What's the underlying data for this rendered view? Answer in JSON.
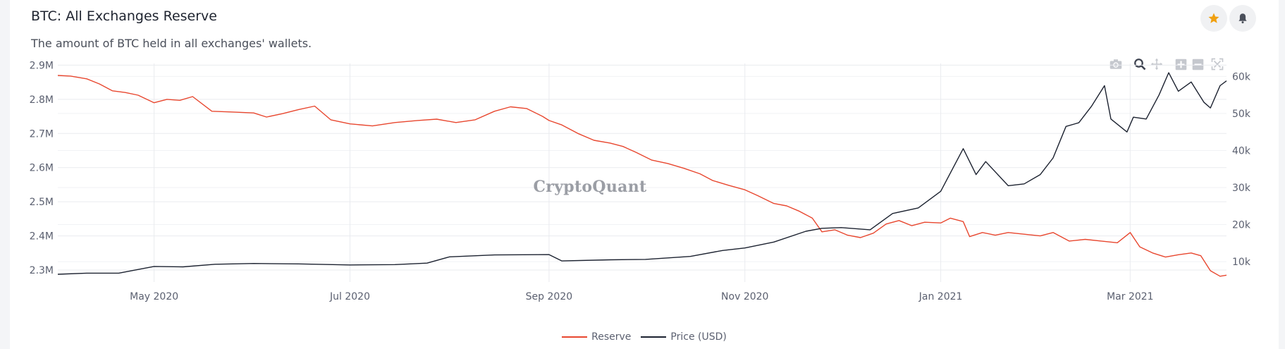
{
  "header": {
    "title": "BTC: All Exchanges Reserve",
    "subtitle": "The amount of BTC held in all exchanges' wallets."
  },
  "watermark": "CryptoQuant",
  "icons": {
    "star": "star-icon",
    "bell": "bell-icon",
    "modebar": [
      "camera-icon",
      "zoom-icon",
      "pan-icon",
      "zoom-in-icon",
      "zoom-out-icon",
      "autoscale-icon"
    ]
  },
  "colors": {
    "reserve": "#e8472f",
    "price": "#1c2230",
    "star": "#f0a010",
    "grid": "#e9ebef",
    "tick": "#5b6070"
  },
  "chart_data": {
    "type": "line",
    "xlim": [
      "2020-04-01",
      "2021-03-31"
    ],
    "x_ticks": [
      {
        "date": "2020-05-01",
        "label": "May 2020"
      },
      {
        "date": "2020-07-01",
        "label": "Jul 2020"
      },
      {
        "date": "2020-09-01",
        "label": "Sep 2020"
      },
      {
        "date": "2020-11-01",
        "label": "Nov 2020"
      },
      {
        "date": "2021-01-01",
        "label": "Jan 2021"
      },
      {
        "date": "2021-03-01",
        "label": "Mar 2021"
      }
    ],
    "y_left": {
      "range": [
        2265000,
        2905000
      ],
      "ticks": [
        2300000,
        2400000,
        2500000,
        2600000,
        2700000,
        2800000,
        2900000
      ],
      "tick_labels": [
        "2.3M",
        "2.4M",
        "2.5M",
        "2.6M",
        "2.7M",
        "2.8M",
        "2.9M"
      ]
    },
    "y_right": {
      "range": [
        4500,
        63500
      ],
      "ticks": [
        10000,
        20000,
        30000,
        40000,
        50000,
        60000
      ],
      "tick_labels": [
        "10k",
        "20k",
        "30k",
        "40k",
        "50k",
        "60k"
      ]
    },
    "grid": true,
    "legend": "bottom-center",
    "series": [
      {
        "name": "Reserve",
        "axis": "left",
        "points": [
          [
            "2020-04-01",
            2870000
          ],
          [
            "2020-04-05",
            2868000
          ],
          [
            "2020-04-10",
            2860000
          ],
          [
            "2020-04-14",
            2845000
          ],
          [
            "2020-04-18",
            2825000
          ],
          [
            "2020-04-22",
            2820000
          ],
          [
            "2020-04-26",
            2812000
          ],
          [
            "2020-05-01",
            2790000
          ],
          [
            "2020-05-05",
            2800000
          ],
          [
            "2020-05-09",
            2797000
          ],
          [
            "2020-05-13",
            2808000
          ],
          [
            "2020-05-19",
            2765000
          ],
          [
            "2020-05-25",
            2763000
          ],
          [
            "2020-06-01",
            2760000
          ],
          [
            "2020-06-05",
            2748000
          ],
          [
            "2020-06-10",
            2758000
          ],
          [
            "2020-06-15",
            2770000
          ],
          [
            "2020-06-20",
            2780000
          ],
          [
            "2020-06-25",
            2740000
          ],
          [
            "2020-07-01",
            2728000
          ],
          [
            "2020-07-08",
            2722000
          ],
          [
            "2020-07-15",
            2732000
          ],
          [
            "2020-07-22",
            2738000
          ],
          [
            "2020-07-28",
            2742000
          ],
          [
            "2020-08-03",
            2732000
          ],
          [
            "2020-08-09",
            2740000
          ],
          [
            "2020-08-15",
            2765000
          ],
          [
            "2020-08-20",
            2778000
          ],
          [
            "2020-08-25",
            2773000
          ],
          [
            "2020-08-30",
            2750000
          ],
          [
            "2020-09-01",
            2738000
          ],
          [
            "2020-09-05",
            2725000
          ],
          [
            "2020-09-10",
            2700000
          ],
          [
            "2020-09-15",
            2680000
          ],
          [
            "2020-09-20",
            2672000
          ],
          [
            "2020-09-24",
            2662000
          ],
          [
            "2020-09-28",
            2645000
          ],
          [
            "2020-10-03",
            2622000
          ],
          [
            "2020-10-08",
            2612000
          ],
          [
            "2020-10-13",
            2598000
          ],
          [
            "2020-10-18",
            2582000
          ],
          [
            "2020-10-22",
            2562000
          ],
          [
            "2020-10-27",
            2548000
          ],
          [
            "2020-11-01",
            2535000
          ],
          [
            "2020-11-05",
            2518000
          ],
          [
            "2020-11-10",
            2495000
          ],
          [
            "2020-11-14",
            2488000
          ],
          [
            "2020-11-18",
            2472000
          ],
          [
            "2020-11-22",
            2452000
          ],
          [
            "2020-11-25",
            2412000
          ],
          [
            "2020-11-29",
            2418000
          ],
          [
            "2020-12-03",
            2402000
          ],
          [
            "2020-12-07",
            2395000
          ],
          [
            "2020-12-11",
            2408000
          ],
          [
            "2020-12-15",
            2435000
          ],
          [
            "2020-12-19",
            2445000
          ],
          [
            "2020-12-23",
            2430000
          ],
          [
            "2020-12-27",
            2440000
          ],
          [
            "2021-01-01",
            2438000
          ],
          [
            "2021-01-04",
            2452000
          ],
          [
            "2021-01-08",
            2442000
          ],
          [
            "2021-01-10",
            2398000
          ],
          [
            "2021-01-14",
            2410000
          ],
          [
            "2021-01-18",
            2402000
          ],
          [
            "2021-01-22",
            2410000
          ],
          [
            "2021-01-27",
            2405000
          ],
          [
            "2021-02-01",
            2400000
          ],
          [
            "2021-02-05",
            2410000
          ],
          [
            "2021-02-10",
            2385000
          ],
          [
            "2021-02-15",
            2390000
          ],
          [
            "2021-02-20",
            2385000
          ],
          [
            "2021-02-25",
            2380000
          ],
          [
            "2021-03-01",
            2410000
          ],
          [
            "2021-03-04",
            2368000
          ],
          [
            "2021-03-08",
            2350000
          ],
          [
            "2021-03-12",
            2338000
          ],
          [
            "2021-03-16",
            2345000
          ],
          [
            "2021-03-20",
            2350000
          ],
          [
            "2021-03-23",
            2342000
          ],
          [
            "2021-03-26",
            2298000
          ],
          [
            "2021-03-29",
            2282000
          ],
          [
            "2021-03-31",
            2285000
          ]
        ]
      },
      {
        "name": "Price (USD)",
        "axis": "right",
        "points": [
          [
            "2020-04-01",
            6600
          ],
          [
            "2020-04-10",
            6900
          ],
          [
            "2020-04-20",
            6900
          ],
          [
            "2020-05-01",
            8700
          ],
          [
            "2020-05-10",
            8600
          ],
          [
            "2020-05-20",
            9300
          ],
          [
            "2020-06-01",
            9500
          ],
          [
            "2020-06-15",
            9400
          ],
          [
            "2020-07-01",
            9100
          ],
          [
            "2020-07-15",
            9200
          ],
          [
            "2020-07-25",
            9600
          ],
          [
            "2020-08-01",
            11300
          ],
          [
            "2020-08-15",
            11800
          ],
          [
            "2020-09-01",
            11900
          ],
          [
            "2020-09-05",
            10200
          ],
          [
            "2020-09-20",
            10500
          ],
          [
            "2020-10-01",
            10600
          ],
          [
            "2020-10-15",
            11400
          ],
          [
            "2020-10-25",
            13000
          ],
          [
            "2020-11-01",
            13700
          ],
          [
            "2020-11-10",
            15300
          ],
          [
            "2020-11-20",
            18200
          ],
          [
            "2020-11-25",
            19000
          ],
          [
            "2020-12-01",
            19200
          ],
          [
            "2020-12-10",
            18600
          ],
          [
            "2020-12-17",
            23000
          ],
          [
            "2020-12-25",
            24500
          ],
          [
            "2021-01-01",
            29000
          ],
          [
            "2021-01-08",
            40500
          ],
          [
            "2021-01-12",
            33500
          ],
          [
            "2021-01-15",
            37000
          ],
          [
            "2021-01-22",
            30500
          ],
          [
            "2021-01-27",
            31000
          ],
          [
            "2021-02-01",
            33500
          ],
          [
            "2021-02-05",
            38000
          ],
          [
            "2021-02-09",
            46500
          ],
          [
            "2021-02-13",
            47500
          ],
          [
            "2021-02-17",
            52000
          ],
          [
            "2021-02-21",
            57500
          ],
          [
            "2021-02-23",
            48500
          ],
          [
            "2021-02-28",
            45000
          ],
          [
            "2021-03-02",
            49000
          ],
          [
            "2021-03-06",
            48500
          ],
          [
            "2021-03-10",
            55000
          ],
          [
            "2021-03-13",
            61000
          ],
          [
            "2021-03-16",
            56000
          ],
          [
            "2021-03-20",
            58500
          ],
          [
            "2021-03-24",
            53000
          ],
          [
            "2021-03-26",
            51500
          ],
          [
            "2021-03-29",
            57500
          ],
          [
            "2021-03-31",
            58800
          ]
        ]
      }
    ]
  }
}
